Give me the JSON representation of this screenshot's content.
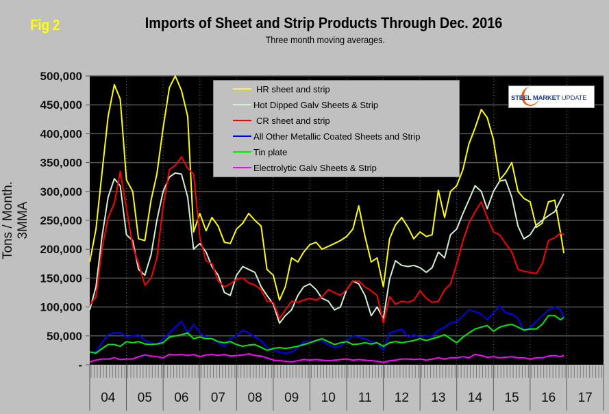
{
  "figure": {
    "fig_label": "Fig 2",
    "logo_text_bold": "STEEL MARKET",
    "logo_text_thin": "UPDATE"
  },
  "chart_data": {
    "type": "line",
    "title": "Imports of Sheet and Strip Products Through Dec. 2016",
    "subtitle": "Three month moving averages.",
    "xlabel": "",
    "ylabel": "Tons / Month. 3MMA",
    "ylim": [
      0,
      500000
    ],
    "yticks": [
      0,
      50000,
      100000,
      150000,
      200000,
      250000,
      300000,
      350000,
      400000,
      450000,
      500000
    ],
    "ytick_labels": [
      "-",
      "50,000",
      "100,000",
      "150,000",
      "200,000",
      "250,000",
      "300,000",
      "350,000",
      "400,000",
      "450,000",
      "500,000"
    ],
    "x_range_years": [
      2004,
      2018
    ],
    "x_tick_labels": [
      "04",
      "05",
      "06",
      "07",
      "08",
      "09",
      "10",
      "11",
      "12",
      "13",
      "14",
      "15",
      "16",
      "17"
    ],
    "grid": true,
    "legend_position": "top-center",
    "x": [
      2004.0,
      2004.17,
      2004.33,
      2004.5,
      2004.67,
      2004.83,
      2005.0,
      2005.17,
      2005.33,
      2005.5,
      2005.67,
      2005.83,
      2006.0,
      2006.17,
      2006.33,
      2006.5,
      2006.67,
      2006.83,
      2007.0,
      2007.17,
      2007.33,
      2007.5,
      2007.67,
      2007.83,
      2008.0,
      2008.17,
      2008.33,
      2008.5,
      2008.67,
      2008.83,
      2009.0,
      2009.17,
      2009.33,
      2009.5,
      2009.67,
      2009.83,
      2010.0,
      2010.17,
      2010.33,
      2010.5,
      2010.67,
      2010.83,
      2011.0,
      2011.17,
      2011.33,
      2011.5,
      2011.67,
      2011.83,
      2012.0,
      2012.17,
      2012.33,
      2012.5,
      2012.67,
      2012.83,
      2013.0,
      2013.17,
      2013.33,
      2013.5,
      2013.67,
      2013.83,
      2014.0,
      2014.17,
      2014.33,
      2014.5,
      2014.67,
      2014.83,
      2015.0,
      2015.17,
      2015.33,
      2015.5,
      2015.67,
      2015.83,
      2016.0,
      2016.17,
      2016.33,
      2016.5,
      2016.67,
      2016.83,
      2016.92
    ],
    "series": [
      {
        "name": "HR sheet and strip",
        "color": "#ffff00",
        "values": [
          178000,
          235000,
          330000,
          430000,
          485000,
          460000,
          320000,
          300000,
          218000,
          215000,
          285000,
          330000,
          410000,
          480000,
          500000,
          475000,
          430000,
          230000,
          262000,
          232000,
          255000,
          240000,
          212000,
          210000,
          235000,
          245000,
          262000,
          250000,
          240000,
          165000,
          155000,
          112000,
          135000,
          185000,
          178000,
          195000,
          208000,
          212000,
          200000,
          205000,
          210000,
          215000,
          222000,
          235000,
          275000,
          222000,
          178000,
          185000,
          135000,
          218000,
          242000,
          255000,
          238000,
          218000,
          230000,
          222000,
          225000,
          302000,
          255000,
          300000,
          310000,
          338000,
          382000,
          410000,
          442000,
          428000,
          390000,
          320000,
          332000,
          350000,
          300000,
          288000,
          282000,
          238000,
          245000,
          282000,
          285000,
          228000,
          193000
        ]
      },
      {
        "name": "Hot Dipped Galv Sheets & Strip",
        "color": "#d4f0d4",
        "values": [
          95000,
          135000,
          220000,
          290000,
          322000,
          310000,
          225000,
          215000,
          165000,
          155000,
          190000,
          250000,
          300000,
          325000,
          332000,
          330000,
          290000,
          200000,
          210000,
          195000,
          170000,
          155000,
          125000,
          120000,
          155000,
          170000,
          165000,
          160000,
          135000,
          120000,
          105000,
          72000,
          85000,
          95000,
          120000,
          135000,
          140000,
          130000,
          115000,
          110000,
          95000,
          100000,
          130000,
          145000,
          140000,
          120000,
          85000,
          100000,
          80000,
          148000,
          180000,
          172000,
          170000,
          172000,
          168000,
          160000,
          168000,
          195000,
          185000,
          225000,
          235000,
          262000,
          285000,
          310000,
          300000,
          270000,
          300000,
          318000,
          320000,
          290000,
          240000,
          218000,
          225000,
          242000,
          250000,
          258000,
          265000,
          285000,
          296000
        ]
      },
      {
        "name": "CR sheet and strip",
        "color": "#ff0000",
        "values": [
          103000,
          118000,
          200000,
          255000,
          280000,
          335000,
          270000,
          205000,
          175000,
          138000,
          150000,
          185000,
          275000,
          338000,
          345000,
          360000,
          340000,
          330000,
          220000,
          180000,
          175000,
          145000,
          135000,
          140000,
          148000,
          150000,
          142000,
          138000,
          130000,
          110000,
          108000,
          80000,
          95000,
          110000,
          108000,
          112000,
          115000,
          112000,
          118000,
          130000,
          125000,
          120000,
          130000,
          145000,
          145000,
          135000,
          128000,
          120000,
          72000,
          118000,
          105000,
          110000,
          108000,
          112000,
          128000,
          115000,
          108000,
          110000,
          130000,
          140000,
          175000,
          215000,
          245000,
          265000,
          282000,
          255000,
          230000,
          225000,
          210000,
          195000,
          165000,
          162000,
          160000,
          158000,
          175000,
          215000,
          220000,
          228000,
          225000
        ]
      },
      {
        "name": "All Other Metallic Coated Sheets and Strip",
        "color": "#0000ff",
        "values": [
          22000,
          22000,
          38000,
          52000,
          55000,
          56000,
          48000,
          50000,
          52000,
          42000,
          38000,
          35000,
          45000,
          55000,
          65000,
          75000,
          55000,
          70000,
          55000,
          48000,
          45000,
          38000,
          32000,
          45000,
          50000,
          60000,
          55000,
          48000,
          42000,
          30000,
          25000,
          22000,
          20000,
          22000,
          30000,
          40000,
          40000,
          42000,
          42000,
          35000,
          30000,
          32000,
          42000,
          50000,
          48000,
          45000,
          40000,
          38000,
          25000,
          55000,
          58000,
          62000,
          48000,
          52000,
          48000,
          50000,
          50000,
          60000,
          65000,
          72000,
          75000,
          85000,
          95000,
          92000,
          88000,
          78000,
          90000,
          102000,
          90000,
          88000,
          80000,
          58000,
          65000,
          75000,
          85000,
          95000,
          100000,
          95000,
          82000
        ]
      },
      {
        "name": "Tin plate",
        "color": "#00ee00",
        "values": [
          22000,
          20000,
          28000,
          35000,
          35000,
          32000,
          40000,
          38000,
          40000,
          36000,
          35000,
          36000,
          38000,
          48000,
          50000,
          52000,
          55000,
          45000,
          48000,
          45000,
          45000,
          40000,
          38000,
          40000,
          35000,
          32000,
          34000,
          35000,
          30000,
          25000,
          28000,
          30000,
          28000,
          30000,
          32000,
          35000,
          38000,
          42000,
          45000,
          40000,
          35000,
          38000,
          40000,
          35000,
          36000,
          38000,
          36000,
          38000,
          32000,
          38000,
          40000,
          38000,
          40000,
          42000,
          45000,
          42000,
          45000,
          48000,
          52000,
          45000,
          38000,
          48000,
          55000,
          62000,
          65000,
          68000,
          58000,
          65000,
          68000,
          70000,
          65000,
          60000,
          62000,
          62000,
          70000,
          85000,
          85000,
          78000,
          82000
        ]
      },
      {
        "name": "Electrolytic Galv Sheets & Strip",
        "color": "#ff00ff",
        "values": [
          5000,
          8000,
          10000,
          10000,
          12000,
          9000,
          10000,
          10000,
          14000,
          17000,
          15000,
          14000,
          12000,
          18000,
          17000,
          18000,
          16000,
          18000,
          14000,
          17000,
          18000,
          16000,
          18000,
          15000,
          16000,
          17000,
          19000,
          16000,
          15000,
          12000,
          8000,
          7000,
          6000,
          5000,
          7000,
          9000,
          8000,
          9000,
          8000,
          7000,
          8000,
          9000,
          10000,
          8000,
          9000,
          8000,
          7000,
          6000,
          4000,
          7000,
          8000,
          10000,
          10000,
          9000,
          10000,
          8000,
          10000,
          12000,
          10000,
          12000,
          12000,
          14000,
          12000,
          18000,
          16000,
          13000,
          14000,
          12000,
          13000,
          14000,
          12000,
          12000,
          10000,
          12000,
          12000,
          15000,
          16000,
          14000,
          16000
        ]
      }
    ]
  }
}
